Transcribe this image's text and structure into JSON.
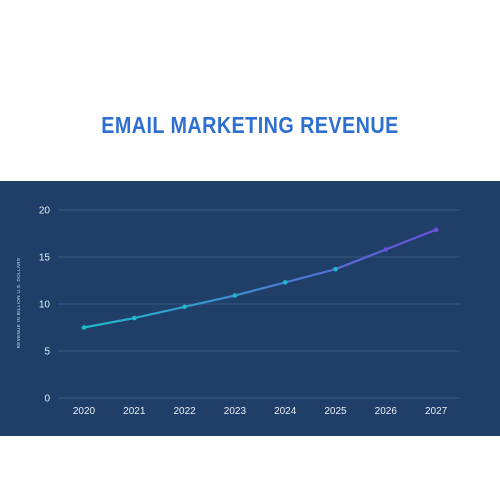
{
  "title": "EMAIL MARKETING REVENUE",
  "colors": {
    "background": "#ffffff",
    "panel": "#1f3f68",
    "title": "#2f6fd0",
    "grid": "#3b5a82",
    "line_start": "#1fb8c9",
    "line_end": "#6a4fd8"
  },
  "chart_data": {
    "type": "line",
    "title": "EMAIL MARKETING REVENUE",
    "xlabel": "",
    "ylabel": "REVENUE IN BILLION U.S. DOLLARS",
    "categories": [
      "2020",
      "2021",
      "2022",
      "2023",
      "2024",
      "2025",
      "2026",
      "2027"
    ],
    "series": [
      {
        "values": [
          7.5,
          8.5,
          9.7,
          10.9,
          12.3,
          13.7,
          15.8,
          17.9
        ]
      }
    ],
    "ylim": [
      0,
      20
    ],
    "yticks": [
      "0",
      "5",
      "10",
      "15",
      "20"
    ],
    "grid": true,
    "legend": "none"
  }
}
